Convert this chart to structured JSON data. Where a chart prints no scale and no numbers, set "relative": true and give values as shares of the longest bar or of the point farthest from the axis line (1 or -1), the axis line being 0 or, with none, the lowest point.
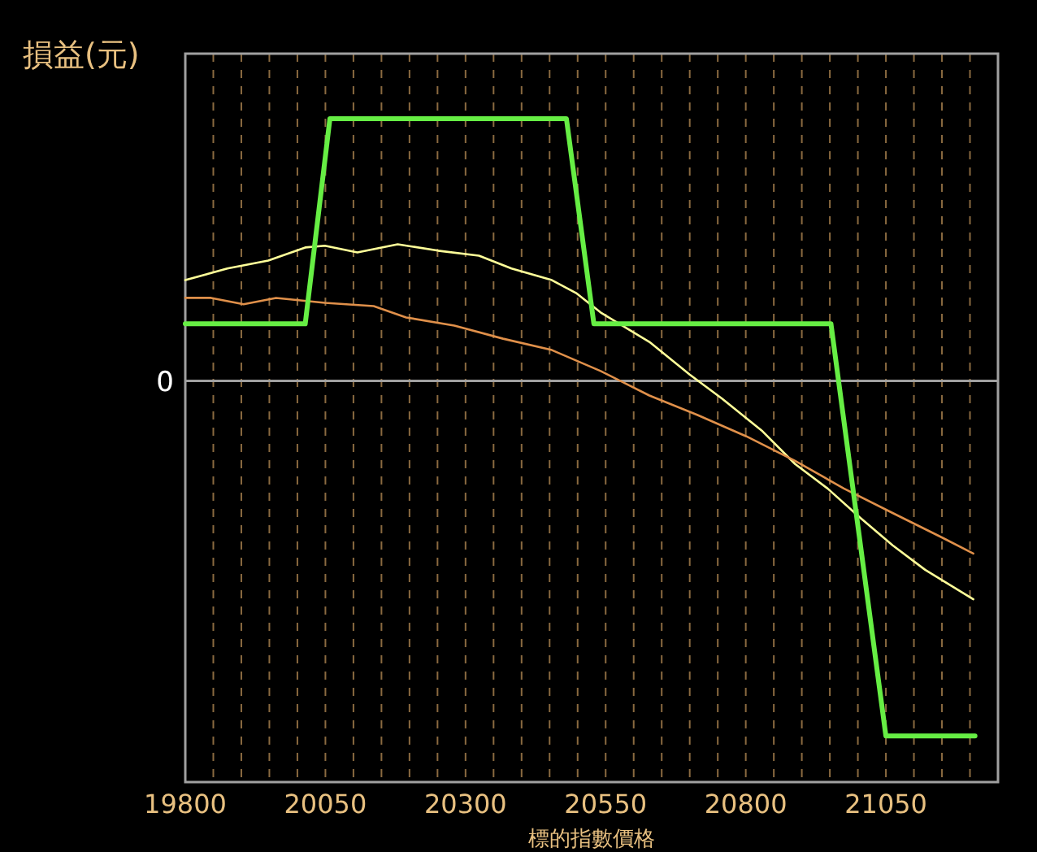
{
  "chart_data": {
    "type": "line",
    "ylabel": "損益(元)",
    "xlabel": "標的指數價格",
    "relative": true,
    "grid": "x",
    "xlim": [
      19800,
      21250
    ],
    "xticks": [
      19800,
      {
        "value": 19850,
        "label": null
      },
      {
        "value": 19900,
        "label": null
      },
      {
        "value": 19950,
        "label": null
      },
      {
        "value": 20000,
        "label": null
      },
      20050,
      {
        "value": 20100,
        "label": null
      },
      {
        "value": 20150,
        "label": null
      },
      {
        "value": 20200,
        "label": null
      },
      {
        "value": 20250,
        "label": null
      },
      20300,
      {
        "value": 20350,
        "label": null
      },
      {
        "value": 20400,
        "label": null
      },
      {
        "value": 20450,
        "label": null
      },
      {
        "value": 20500,
        "label": null
      },
      20550,
      {
        "value": 20600,
        "label": null
      },
      {
        "value": 20650,
        "label": null
      },
      {
        "value": 20700,
        "label": null
      },
      {
        "value": 20750,
        "label": null
      },
      20800,
      {
        "value": 20850,
        "label": null
      },
      {
        "value": 20900,
        "label": null
      },
      {
        "value": 20950,
        "label": null
      },
      {
        "value": 21000,
        "label": null
      },
      21050,
      {
        "value": 21100,
        "label": null
      },
      {
        "value": 21150,
        "label": null
      },
      {
        "value": 21200,
        "label": null
      }
    ],
    "ref_lines": [
      {
        "axis": "y",
        "value": 0,
        "label": "0",
        "color": "#a0a0a0"
      }
    ],
    "series": [
      {
        "color": "#ffff99",
        "x": [
          19800,
          19875,
          19948,
          20014,
          20049,
          20107,
          20179,
          20251,
          20324,
          20382,
          20454,
          20497,
          20541,
          20628,
          20700,
          20758,
          20830,
          20888,
          20946,
          21004,
          21062,
          21120,
          21206
        ],
        "values": [
          0.284,
          0.317,
          0.339,
          0.376,
          0.381,
          0.362,
          0.385,
          0.367,
          0.353,
          0.317,
          0.284,
          0.248,
          0.193,
          0.11,
          0.018,
          -0.05,
          -0.142,
          -0.234,
          -0.303,
          -0.385,
          -0.463,
          -0.532,
          -0.615
        ]
      },
      {
        "color": "#e0904a",
        "x": [
          19800,
          19846,
          19904,
          19962,
          20049,
          20136,
          20194,
          20280,
          20367,
          20454,
          20541,
          20628,
          20714,
          20801,
          20888,
          20975,
          21062,
          21149,
          21206
        ],
        "values": [
          0.234,
          0.234,
          0.216,
          0.234,
          0.22,
          0.211,
          0.179,
          0.156,
          0.119,
          0.087,
          0.028,
          -0.041,
          -0.096,
          -0.156,
          -0.225,
          -0.303,
          -0.372,
          -0.44,
          -0.486
        ]
      },
      {
        "color": "#66ee44",
        "x": [
          19800,
          20014,
          20058,
          20480,
          20529,
          20952,
          21050,
          21209
        ],
        "values": [
          0.161,
          0.161,
          0.739,
          0.739,
          0.161,
          0.161,
          -1,
          -1
        ]
      }
    ]
  }
}
